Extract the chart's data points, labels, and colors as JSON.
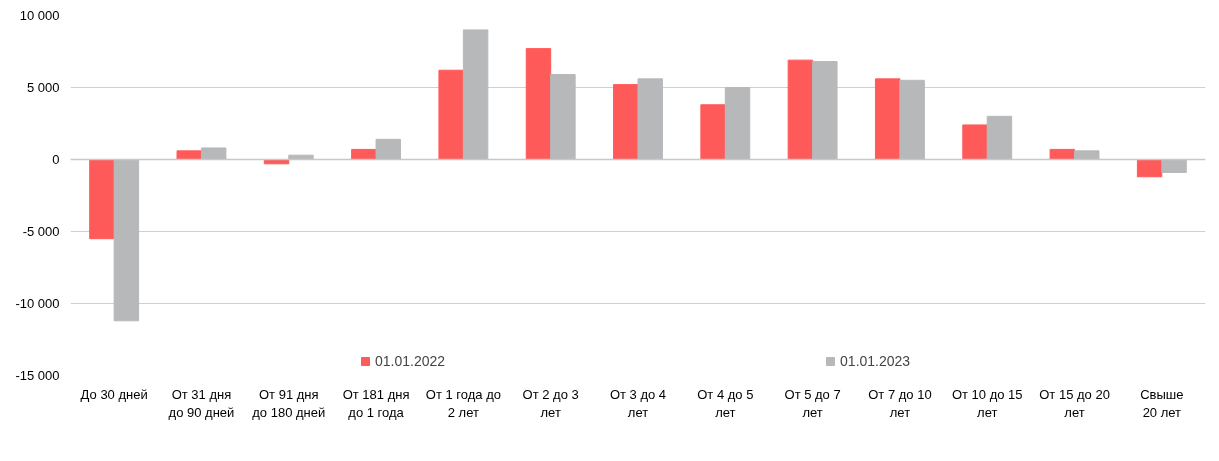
{
  "chart_data": {
    "type": "bar",
    "categories": [
      "До 30 дней",
      "От 31 дня\nдо 90 дней",
      "От 91 дня\nдо 180 дней",
      "От 181 дня\nдо 1 года",
      "От 1 года до\n2 лет",
      "От 2 до 3\nлет",
      "От 3 до 4\nлет",
      "От 4 до 5\nлет",
      "От 5 до 7\nлет",
      "От 7 до 10\nлет",
      "От 10 до 15\nлет",
      "От 15 до 20\nлет",
      "Свыше\n20 лет"
    ],
    "series": [
      {
        "name": "01.01.2022",
        "color": "#ff5a5a",
        "values": [
          -5500,
          600,
          -300,
          700,
          6200,
          7700,
          5200,
          3800,
          6900,
          5600,
          2400,
          700,
          -1200
        ]
      },
      {
        "name": "01.01.2023",
        "color": "#b7b8ba",
        "values": [
          -11200,
          800,
          300,
          1400,
          9000,
          5900,
          5600,
          5000,
          6800,
          5500,
          3000,
          600,
          -900
        ]
      }
    ],
    "ylim": [
      -15000,
      10000
    ],
    "yticks": [
      {
        "value": -15000,
        "label": "-15 000"
      },
      {
        "value": -10000,
        "label": "-10 000"
      },
      {
        "value": -5000,
        "label": "-5 000"
      },
      0,
      {
        "value": 5000,
        "label": "5 000"
      },
      {
        "value": 10000,
        "label": "10 000"
      }
    ],
    "grid": "y",
    "legend": "bottom"
  }
}
